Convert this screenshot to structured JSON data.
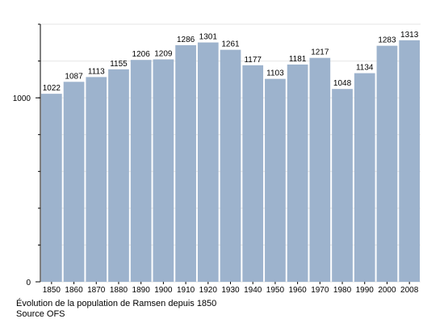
{
  "chart_data": {
    "type": "bar",
    "categories": [
      "1850",
      "1860",
      "1870",
      "1880",
      "1890",
      "1900",
      "1910",
      "1920",
      "1930",
      "1940",
      "1950",
      "1960",
      "1970",
      "1980",
      "1990",
      "2000",
      "2008"
    ],
    "values": [
      1022,
      1087,
      1113,
      1155,
      1206,
      1209,
      1286,
      1301,
      1261,
      1177,
      1103,
      1181,
      1217,
      1048,
      1134,
      1283,
      1313
    ],
    "y_ticks": [
      "0",
      "1000"
    ],
    "ylim": [
      0,
      1400
    ],
    "grid": "horizontal",
    "bar_color": "#9db3cd"
  },
  "caption": {
    "line1": "Évolution de la population de Ramsen depuis 1850",
    "line2": "Source OFS"
  }
}
